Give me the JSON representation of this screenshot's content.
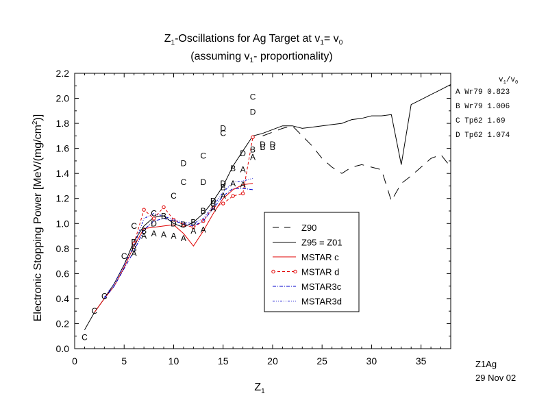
{
  "chart_data": {
    "type": "line",
    "title_parts": {
      "line1": [
        "Z",
        "1",
        "-Oscillations for Ag Target at v",
        "1",
        "= v",
        "0"
      ],
      "line2": [
        "(assuming v",
        "1",
        "- proportionality)"
      ]
    },
    "xlabel_parts": [
      "Z",
      "1"
    ],
    "ylabel_parts": [
      "Electronic Stopping Power [MeV/(mg/cm",
      "2",
      ")]"
    ],
    "xlim": [
      0,
      38
    ],
    "ylim": [
      0,
      2.2
    ],
    "x_ticks": [
      0,
      5,
      10,
      15,
      20,
      25,
      30,
      35
    ],
    "y_ticks": [
      0.0,
      0.2,
      0.4,
      0.6,
      0.8,
      1.0,
      1.2,
      1.4,
      1.6,
      1.8,
      2.0,
      2.2
    ],
    "series": [
      {
        "name": "Z90",
        "style": "longdash",
        "color": "#000000",
        "x": [
          19,
          20,
          21,
          22,
          23,
          24,
          25,
          26,
          27,
          28,
          29,
          30,
          31,
          32,
          33,
          34,
          35,
          36,
          37,
          38
        ],
        "y": [
          1.7,
          1.73,
          1.76,
          1.78,
          1.7,
          1.62,
          1.52,
          1.45,
          1.4,
          1.45,
          1.47,
          1.45,
          1.43,
          1.18,
          1.32,
          1.38,
          1.45,
          1.52,
          1.55,
          1.45
        ]
      },
      {
        "name": "Z95 = Z01",
        "style": "solid",
        "color": "#000000",
        "x": [
          1,
          2,
          3,
          4,
          5,
          6,
          7,
          8,
          9,
          10,
          11,
          12,
          13,
          14,
          15,
          16,
          17,
          18,
          19,
          20,
          21,
          22,
          23,
          24,
          25,
          26,
          27,
          28,
          29,
          30,
          31,
          32,
          33,
          34,
          35,
          36,
          37,
          38
        ],
        "y": [
          0.15,
          0.29,
          0.4,
          0.52,
          0.67,
          0.86,
          0.98,
          1.05,
          1.06,
          1.0,
          0.97,
          1.01,
          1.08,
          1.18,
          1.3,
          1.46,
          1.58,
          1.7,
          1.72,
          1.75,
          1.78,
          1.78,
          1.76,
          1.77,
          1.78,
          1.79,
          1.8,
          1.83,
          1.84,
          1.86,
          1.86,
          1.87,
          1.47,
          1.95,
          1.99,
          2.03,
          2.07,
          2.11
        ]
      },
      {
        "name": "MSTAR c",
        "style": "solid",
        "color": "#e00000",
        "x": [
          2,
          3,
          4,
          5,
          6,
          7,
          8,
          9,
          10,
          11,
          12,
          13,
          14,
          15,
          16,
          17,
          18
        ],
        "y": [
          0.29,
          0.4,
          0.5,
          0.65,
          0.82,
          0.96,
          0.97,
          0.98,
          0.99,
          0.92,
          0.82,
          0.94,
          1.08,
          1.2,
          1.27,
          1.31,
          1.32
        ]
      },
      {
        "name": "MSTAR d",
        "style": "dash-circle",
        "color": "#e00000",
        "x": [
          6,
          7,
          8,
          9,
          10,
          11,
          12,
          13,
          14,
          15,
          16,
          17,
          18
        ],
        "y": [
          0.84,
          1.11,
          1.04,
          1.13,
          1.03,
          0.99,
          0.97,
          1.02,
          1.13,
          1.16,
          1.22,
          1.24,
          1.69
        ]
      },
      {
        "name": "MSTAR3c",
        "style": "dashdot",
        "color": "#0000cc",
        "x": [
          3,
          4,
          5,
          6,
          7,
          8,
          9,
          10,
          11,
          12,
          13,
          14,
          15,
          16,
          17,
          18
        ],
        "y": [
          0.4,
          0.5,
          0.64,
          0.78,
          0.95,
          1.02,
          1.04,
          1.02,
          1.0,
          0.98,
          1.02,
          1.12,
          1.22,
          1.28,
          1.28,
          1.27
        ]
      },
      {
        "name": "MSTAR3d",
        "style": "dashdotdot",
        "color": "#0000cc",
        "x": [
          3,
          4,
          5,
          6,
          7,
          8,
          9,
          10,
          11,
          12,
          13,
          14,
          15,
          16,
          17,
          18
        ],
        "y": [
          0.41,
          0.52,
          0.67,
          0.82,
          1.04,
          1.08,
          1.06,
          1.03,
          1.01,
          1.0,
          1.04,
          1.14,
          1.25,
          1.33,
          1.34,
          1.36
        ]
      }
    ],
    "data_points": [
      {
        "label": "C",
        "x": 1,
        "y": 0.09
      },
      {
        "label": "C",
        "x": 2,
        "y": 0.3
      },
      {
        "label": "C",
        "x": 3,
        "y": 0.42
      },
      {
        "label": "C",
        "x": 5,
        "y": 0.74
      },
      {
        "label": "C",
        "x": 6,
        "y": 0.98
      },
      {
        "label": "D",
        "x": 6,
        "y": 0.85
      },
      {
        "label": "A",
        "x": 6,
        "y": 0.76
      },
      {
        "label": "B",
        "x": 6,
        "y": 0.8
      },
      {
        "label": "A",
        "x": 7,
        "y": 0.9
      },
      {
        "label": "B",
        "x": 7,
        "y": 0.94
      },
      {
        "label": "C",
        "x": 8,
        "y": 1.08
      },
      {
        "label": "D",
        "x": 8,
        "y": 1.0
      },
      {
        "label": "A",
        "x": 8,
        "y": 0.92
      },
      {
        "label": "B",
        "x": 9,
        "y": 1.06
      },
      {
        "label": "A",
        "x": 9,
        "y": 0.91
      },
      {
        "label": "D",
        "x": 10,
        "y": 1.0
      },
      {
        "label": "A",
        "x": 10,
        "y": 0.9
      },
      {
        "label": "C",
        "x": 10,
        "y": 1.22
      },
      {
        "label": "B",
        "x": 11,
        "y": 0.99
      },
      {
        "label": "A",
        "x": 11,
        "y": 0.88
      },
      {
        "label": "D",
        "x": 11,
        "y": 1.48
      },
      {
        "label": "C",
        "x": 11,
        "y": 1.33
      },
      {
        "label": "B",
        "x": 12,
        "y": 1.01
      },
      {
        "label": "A",
        "x": 12,
        "y": 0.94
      },
      {
        "label": "C",
        "x": 13,
        "y": 1.54
      },
      {
        "label": "D",
        "x": 13,
        "y": 1.33
      },
      {
        "label": "B",
        "x": 13,
        "y": 1.1
      },
      {
        "label": "A",
        "x": 13,
        "y": 0.95
      },
      {
        "label": "D",
        "x": 14,
        "y": 1.18
      },
      {
        "label": "B",
        "x": 14,
        "y": 1.16
      },
      {
        "label": "A",
        "x": 14,
        "y": 1.12
      },
      {
        "label": "D",
        "x": 15,
        "y": 1.76
      },
      {
        "label": "C",
        "x": 15,
        "y": 1.72
      },
      {
        "label": "B",
        "x": 15,
        "y": 1.29
      },
      {
        "label": "D",
        "x": 15,
        "y": 1.32
      },
      {
        "label": "A",
        "x": 15,
        "y": 1.22
      },
      {
        "label": "B",
        "x": 16,
        "y": 1.44
      },
      {
        "label": "A",
        "x": 16,
        "y": 1.32
      },
      {
        "label": "D",
        "x": 17,
        "y": 1.56
      },
      {
        "label": "A",
        "x": 17,
        "y": 1.43
      },
      {
        "label": "A",
        "x": 17,
        "y": 1.31
      },
      {
        "label": "C",
        "x": 18,
        "y": 2.01
      },
      {
        "label": "D",
        "x": 18,
        "y": 1.89
      },
      {
        "label": "B",
        "x": 18,
        "y": 1.59
      },
      {
        "label": "A",
        "x": 18,
        "y": 1.53
      },
      {
        "label": "B",
        "x": 19,
        "y": 1.61
      },
      {
        "label": "D",
        "x": 19,
        "y": 1.63
      },
      {
        "label": "B",
        "x": 20,
        "y": 1.61
      },
      {
        "label": "D",
        "x": 20,
        "y": 1.63
      }
    ],
    "legend": {
      "placement": "center-right inside plot",
      "entries": [
        "Z90",
        "Z95 = Z01",
        "MSTAR c",
        "MSTAR d",
        "MSTAR3c",
        "MSTAR3d"
      ]
    },
    "side_table": {
      "header_parts": [
        "v",
        "1",
        "/v",
        "0"
      ],
      "rows": [
        {
          "key": "A",
          "source": "Wr79",
          "value": "0.823"
        },
        {
          "key": "B",
          "source": "Wr79",
          "value": "1.006"
        },
        {
          "key": "C",
          "source": "Tp62",
          "value": "1.69"
        },
        {
          "key": "D",
          "source": "Tp62",
          "value": "1.074"
        }
      ]
    },
    "footer": {
      "id": "Z1Ag",
      "date": "29 Nov 02"
    }
  }
}
